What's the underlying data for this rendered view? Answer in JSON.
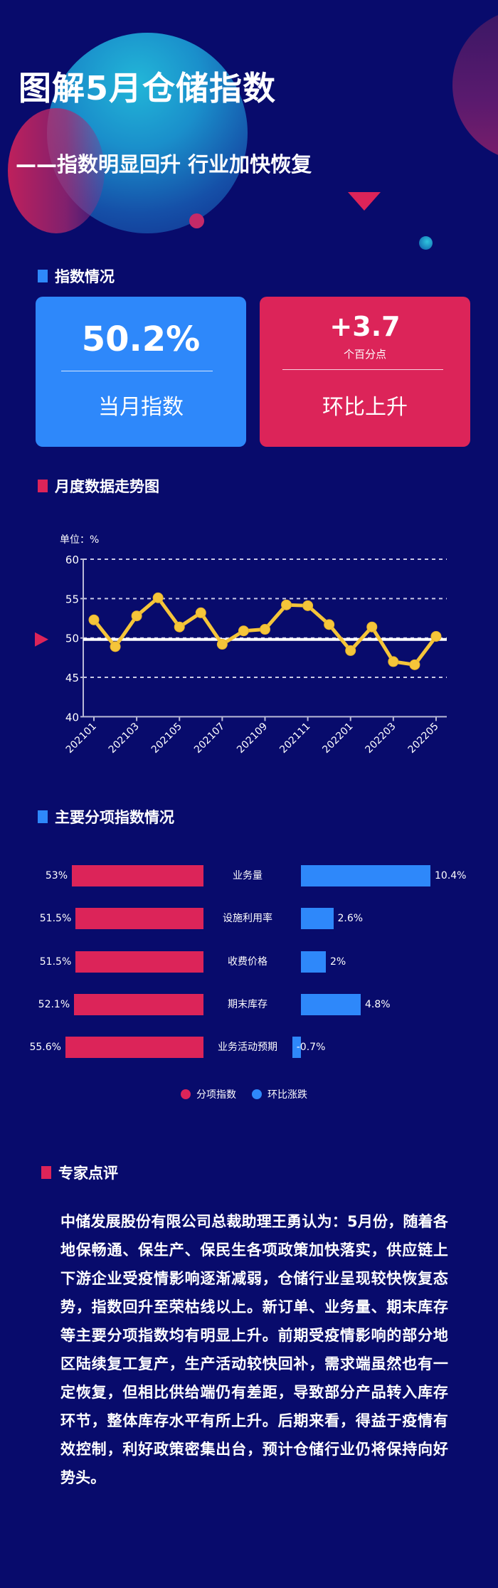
{
  "hero": {
    "title": "图解5月仓储指数",
    "subtitle": "——指数明显回升 行业加快恢复"
  },
  "colors": {
    "background": "#080b6c",
    "blue": "#2e88fa",
    "red": "#dc2459",
    "line": "#f5c53a"
  },
  "sections": {
    "index": "指数情况",
    "trend": "月度数据走势图",
    "sub_index": "主要分项指数情况",
    "expert": "专家点评"
  },
  "cards": {
    "current": {
      "value": "50.2%",
      "label": "当月指数"
    },
    "change": {
      "value": "+3.7",
      "unit": "个百分点",
      "label": "环比上升"
    }
  },
  "trend_chart": {
    "unit_label": "单位：%"
  },
  "bars": {
    "rows": [
      {
        "name": "业务量",
        "index": "53%",
        "change": "10.4%"
      },
      {
        "name": "设施利用率",
        "index": "51.5%",
        "change": "2.6%"
      },
      {
        "name": "收费价格",
        "index": "51.5%",
        "change": "2%"
      },
      {
        "name": "期末库存",
        "index": "52.1%",
        "change": "4.8%"
      },
      {
        "name": "业务活动预期",
        "index": "55.6%",
        "change": "-0.7%"
      }
    ],
    "legend": {
      "index": "分项指数",
      "change": "环比涨跌"
    }
  },
  "expert": {
    "text": "中储发展股份有限公司总裁助理王勇认为：5月份，随着各地保畅通、保生产、保民生各项政策加快落实，供应链上下游企业受疫情影响逐渐减弱，仓储行业呈现较快恢复态势，指数回升至荣枯线以上。新订单、业务量、期末库存等主要分项指数均有明显上升。前期受疫情影响的部分地区陆续复工复产，生产活动较快回补，需求端虽然也有一定恢复，但相比供给端仍有差距，导致部分产品转入库存环节，整体库存水平有所上升。后期来看，得益于疫情有效控制，利好政策密集出台，预计仓储行业仍将保持向好势头。"
  },
  "chart_data": [
    {
      "type": "line",
      "title": "月度数据走势图",
      "xlabel": "",
      "ylabel": "单位：%",
      "x": [
        "202101",
        "202102",
        "202103",
        "202104",
        "202105",
        "202106",
        "202107",
        "202108",
        "202109",
        "202110",
        "202111",
        "202112",
        "202201",
        "202202",
        "202203",
        "202204",
        "202205"
      ],
      "x_tick_labels": [
        "202101",
        "202103",
        "202105",
        "202107",
        "202109",
        "202111",
        "202201",
        "202203",
        "202205"
      ],
      "series": [
        {
          "name": "仓储指数",
          "values": [
            52.3,
            48.9,
            52.8,
            55.1,
            51.4,
            53.2,
            49.2,
            50.9,
            51.1,
            54.2,
            54.1,
            51.7,
            48.4,
            51.4,
            47.0,
            46.6,
            50.2
          ]
        }
      ],
      "ylim": [
        40,
        60
      ],
      "yticks": [
        40,
        45,
        50,
        55,
        60
      ],
      "reference_line": 50,
      "grid": true
    },
    {
      "type": "bar",
      "title": "主要分项指数情况",
      "categories": [
        "业务量",
        "设施利用率",
        "收费价格",
        "期末库存",
        "业务活动预期"
      ],
      "series": [
        {
          "name": "分项指数",
          "values": [
            53,
            51.5,
            51.5,
            52.1,
            55.6
          ]
        },
        {
          "name": "环比涨跌",
          "values": [
            10.4,
            2.6,
            2,
            4.8,
            -0.7
          ]
        }
      ],
      "legend_position": "bottom"
    }
  ]
}
